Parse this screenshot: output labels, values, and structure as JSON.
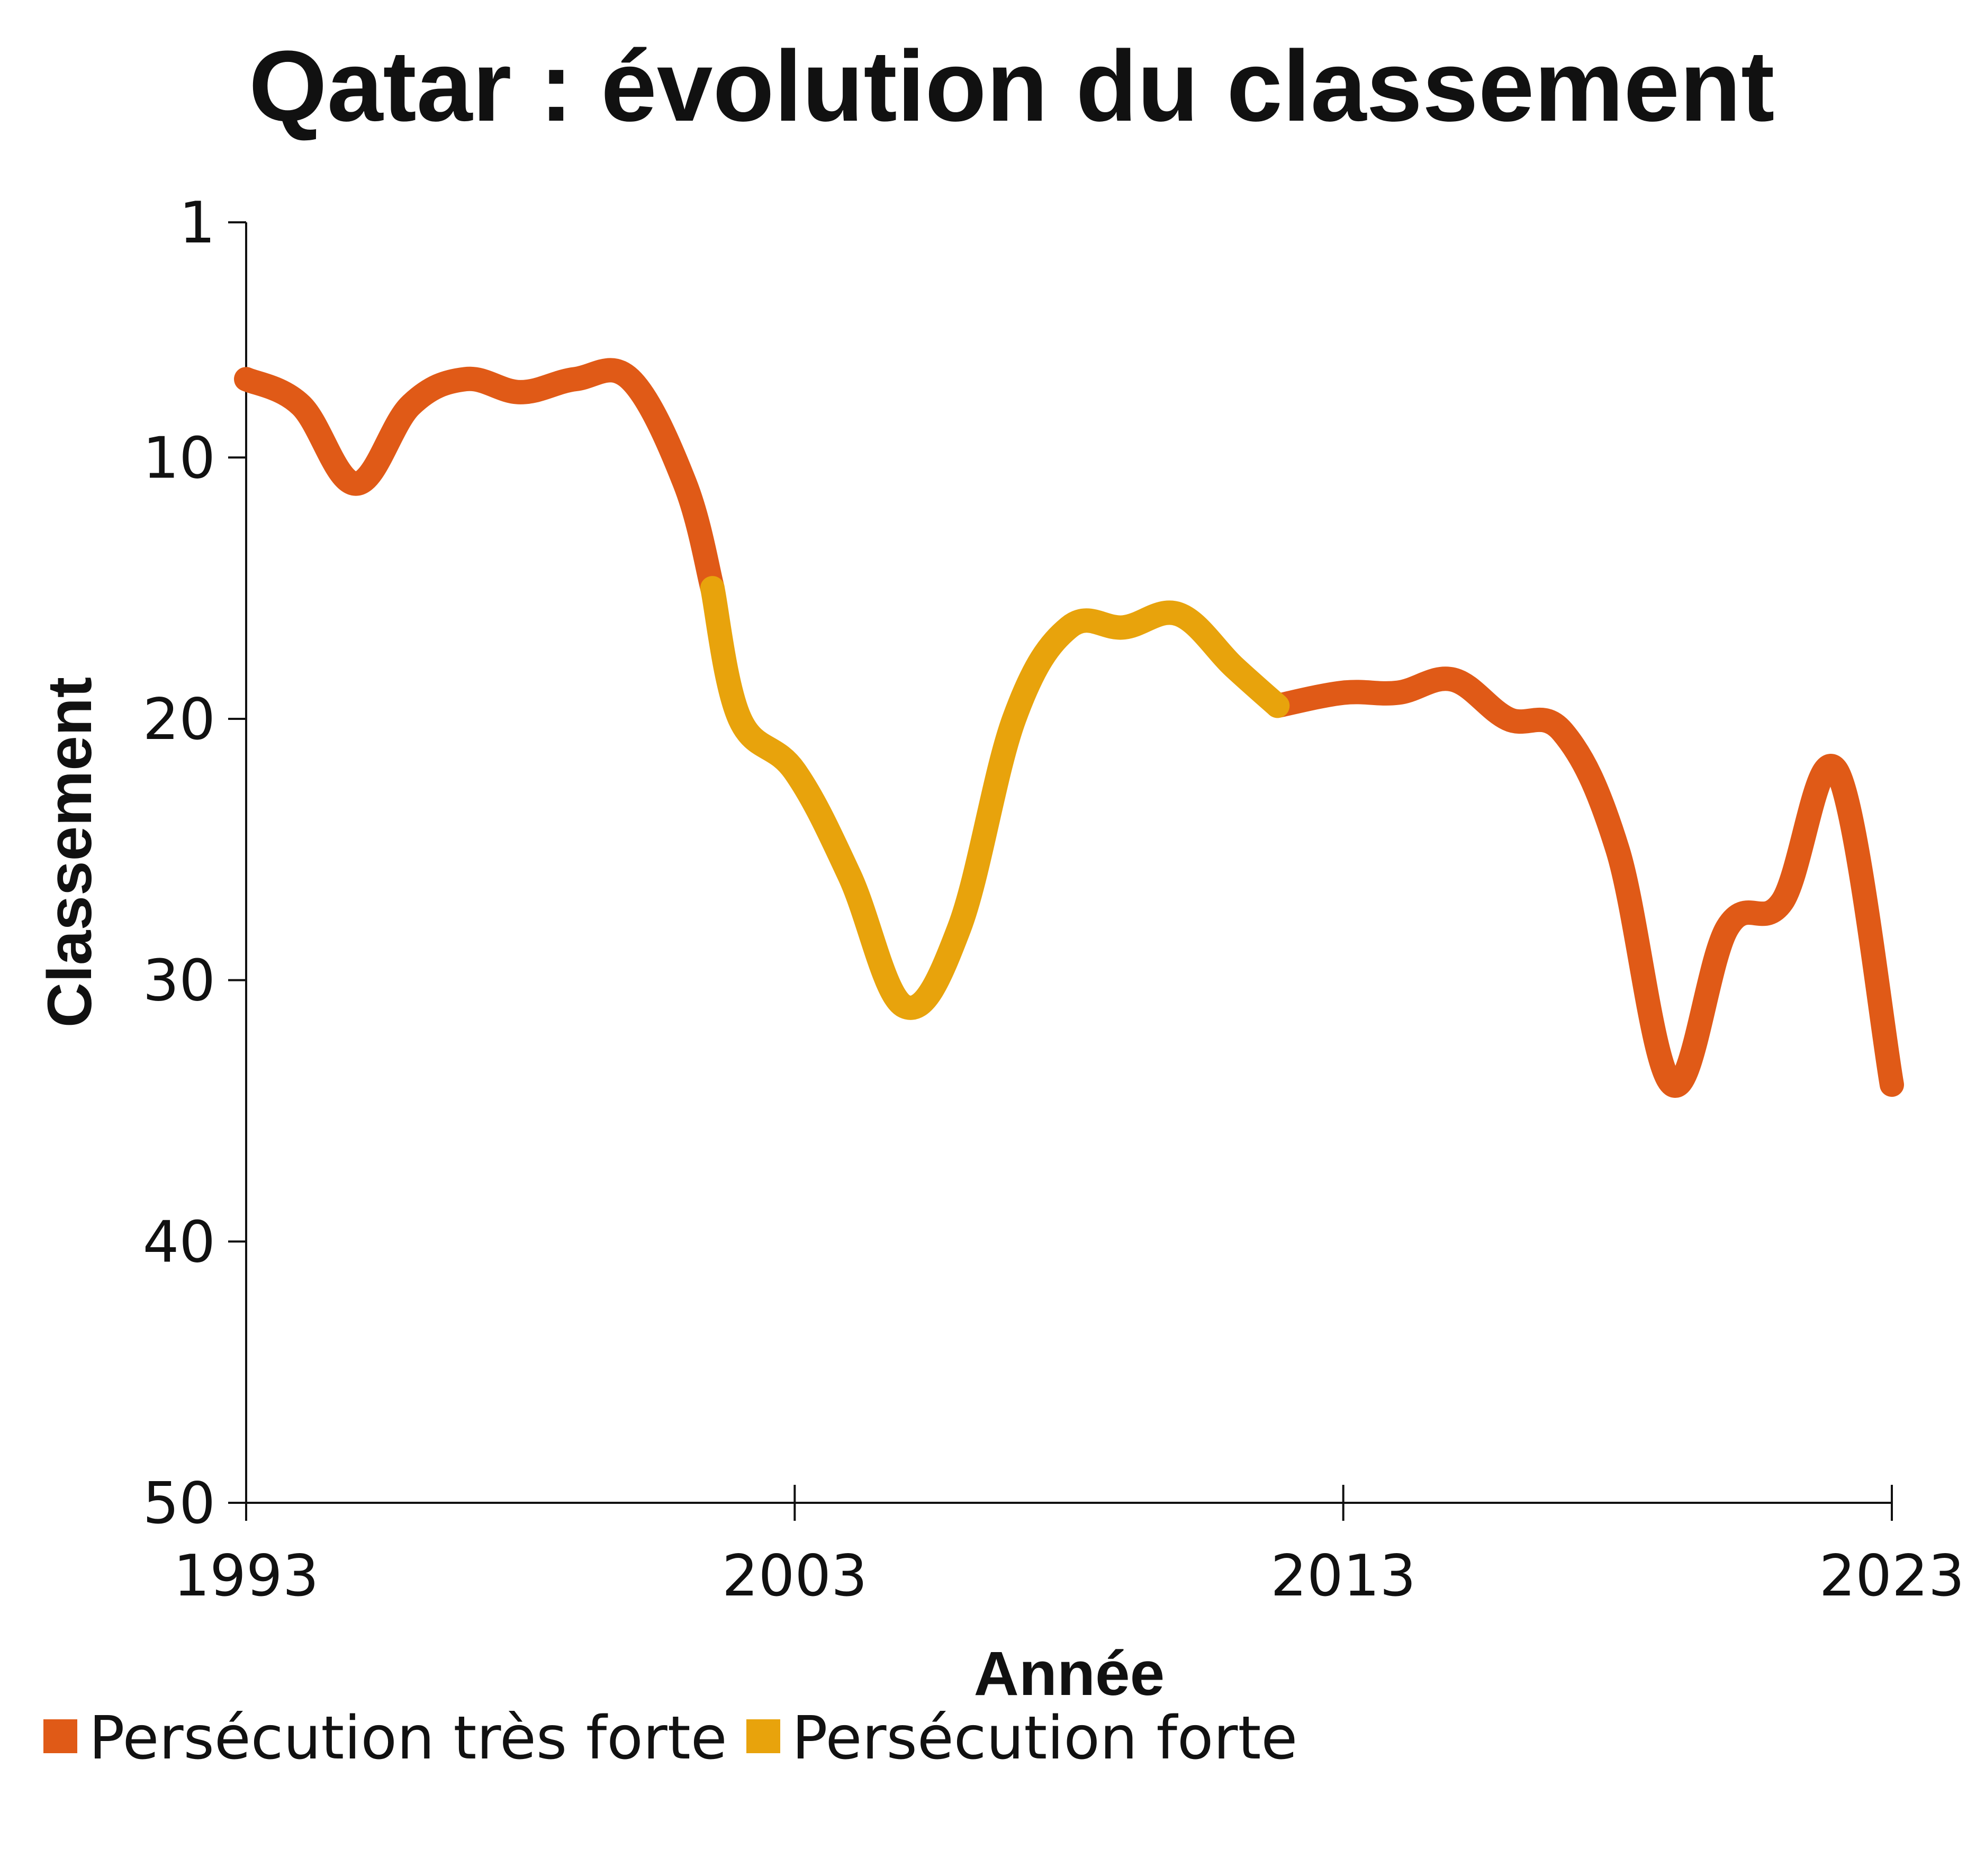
{
  "chart_data": {
    "type": "line",
    "title": "Qatar : évolution du classement",
    "xlabel": "Année",
    "ylabel": "Classement",
    "xlim": [
      1993,
      2023
    ],
    "ylim": [
      1,
      50
    ],
    "y_inverted": true,
    "x_ticks": [
      "1993",
      "2003",
      "2013",
      "2023"
    ],
    "y_ticks": [
      "1",
      "10",
      "20",
      "30",
      "40",
      "50"
    ],
    "grid": false,
    "legend_position": "bottom-left",
    "colors": {
      "tres_forte": "#E05A17",
      "forte": "#E8A30C",
      "axis": "#111111"
    },
    "series": [
      {
        "name": "Persécution très forte",
        "color": "#E05A17",
        "segments": [
          {
            "x": [
              1993,
              1994,
              1995,
              1996,
              1997,
              1998,
              1999,
              2000,
              2001,
              2001.5
            ],
            "y": [
              7,
              8,
              11,
              8,
              7,
              7.5,
              7,
              7,
              11,
              15
            ]
          },
          {
            "x": [
              2011.8,
              2013,
              2014,
              2015,
              2016,
              2017,
              2018,
              2019,
              2020,
              2021,
              2022,
              2023
            ],
            "y": [
              19.5,
              19,
              19,
              18.5,
              20,
              20.5,
              25,
              34,
              28,
              27,
              22,
              34
            ]
          }
        ]
      },
      {
        "name": "Persécution forte",
        "color": "#E8A30C",
        "segments": [
          {
            "x": [
              2001.5,
              2002,
              2003,
              2004,
              2005,
              2006,
              2007,
              2008,
              2009,
              2010,
              2011,
              2011.8
            ],
            "y": [
              15,
              20,
              22,
              26,
              31,
              28,
              20,
              16.5,
              16.5,
              16,
              18,
              19.5
            ]
          }
        ]
      }
    ]
  }
}
